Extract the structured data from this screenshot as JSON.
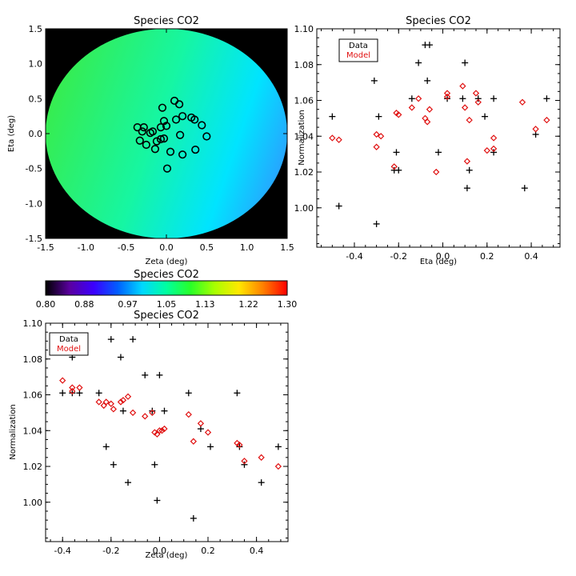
{
  "chart_data": [
    {
      "type": "map",
      "title": "Species CO2",
      "xlabel": "Zeta (deg)",
      "ylabel": "Eta (deg)",
      "xlim": [
        -1.5,
        1.5
      ],
      "ylim": [
        -1.5,
        1.5
      ],
      "xticks": [
        "-1.5",
        "-1.0",
        "-0.5",
        "0.0",
        "0.5",
        "1.0",
        "1.5"
      ],
      "yticks": [
        "-1.5",
        "-1.0",
        "-0.5",
        "0.0",
        "0.5",
        "1.0",
        "1.5"
      ],
      "disk_radius": 1.5,
      "gradient_low_color": "#38ec4c",
      "gradient_mid_color": "#16f6a2",
      "gradient_high_color": "#00e4ff",
      "gradient_edge_color": "#2aa0ff",
      "circles": [
        [
          -0.28,
          0.09
        ],
        [
          -0.36,
          0.09
        ],
        [
          -0.2,
          0.01
        ],
        [
          -0.05,
          0.37
        ],
        [
          0.1,
          0.47
        ],
        [
          0.16,
          0.42
        ],
        [
          -0.3,
          0.03
        ],
        [
          -0.17,
          0.03
        ],
        [
          -0.03,
          0.18
        ],
        [
          0.0,
          0.11
        ],
        [
          0.12,
          0.2
        ],
        [
          0.2,
          0.25
        ],
        [
          0.31,
          0.23
        ],
        [
          0.35,
          0.2
        ],
        [
          0.44,
          0.12
        ],
        [
          0.5,
          -0.04
        ],
        [
          0.05,
          -0.26
        ],
        [
          0.17,
          -0.02
        ],
        [
          0.36,
          -0.23
        ],
        [
          -0.33,
          -0.1
        ],
        [
          -0.25,
          -0.16
        ],
        [
          -0.14,
          -0.22
        ],
        [
          -0.07,
          -0.08
        ],
        [
          -0.03,
          -0.07
        ],
        [
          0.01,
          -0.5
        ],
        [
          -0.12,
          -0.11
        ],
        [
          0.2,
          -0.3
        ],
        [
          -0.07,
          0.09
        ]
      ]
    },
    {
      "type": "colorbar",
      "title": "Species CO2",
      "range": [
        0.8,
        1.3
      ],
      "ticks": [
        "0.80",
        "0.88",
        "0.97",
        "1.05",
        "1.13",
        "1.22",
        "1.30"
      ],
      "colors": [
        "#000000",
        "#5a00a0",
        "#3b00ff",
        "#0060ff",
        "#00d8ff",
        "#00ffa0",
        "#28ff28",
        "#a8ff00",
        "#ffe800",
        "#ff8000",
        "#ff0000"
      ]
    },
    {
      "type": "scatter",
      "title": "Species CO2",
      "xlabel": "Eta (deg)",
      "ylabel": "Normalization",
      "xlim": [
        -0.57,
        0.53
      ],
      "ylim": [
        0.978,
        1.1
      ],
      "xticks": [
        "-0.4",
        "-0.2",
        "0.0",
        "0.2",
        "0.4"
      ],
      "xtick_values": [
        -0.4,
        -0.2,
        0.0,
        0.2,
        0.4
      ],
      "yticks": [
        "1.00",
        "1.02",
        "1.04",
        "1.06",
        "1.08",
        "1.10"
      ],
      "ytick_values": [
        1.0,
        1.02,
        1.04,
        1.06,
        1.08,
        1.1
      ],
      "legend": {
        "data": "Data",
        "model": "Model"
      },
      "data_color": "#000000",
      "model_color": "#e01010",
      "series": [
        {
          "name": "Data",
          "marker": "plus",
          "points": [
            [
              -0.5,
              1.051
            ],
            [
              -0.47,
              1.001
            ],
            [
              -0.31,
              1.071
            ],
            [
              -0.3,
              0.991
            ],
            [
              -0.29,
              1.051
            ],
            [
              -0.22,
              1.021
            ],
            [
              -0.21,
              1.031
            ],
            [
              -0.2,
              1.021
            ],
            [
              -0.14,
              1.061
            ],
            [
              -0.11,
              1.081
            ],
            [
              -0.08,
              1.091
            ],
            [
              -0.06,
              1.091
            ],
            [
              -0.07,
              1.071
            ],
            [
              -0.02,
              1.031
            ],
            [
              0.02,
              1.061
            ],
            [
              0.09,
              1.061
            ],
            [
              0.1,
              1.081
            ],
            [
              0.11,
              1.011
            ],
            [
              0.12,
              1.021
            ],
            [
              0.16,
              1.061
            ],
            [
              0.19,
              1.051
            ],
            [
              0.23,
              1.061
            ],
            [
              0.23,
              1.031
            ],
            [
              0.37,
              1.011
            ],
            [
              0.42,
              1.041
            ],
            [
              0.47,
              1.061
            ]
          ]
        },
        {
          "name": "Model",
          "marker": "diamond",
          "points": [
            [
              -0.5,
              1.039
            ],
            [
              -0.47,
              1.038
            ],
            [
              -0.3,
              1.041
            ],
            [
              -0.28,
              1.04
            ],
            [
              -0.3,
              1.034
            ],
            [
              -0.22,
              1.023
            ],
            [
              -0.2,
              1.052
            ],
            [
              -0.21,
              1.053
            ],
            [
              -0.14,
              1.056
            ],
            [
              -0.11,
              1.061
            ],
            [
              -0.08,
              1.05
            ],
            [
              -0.07,
              1.048
            ],
            [
              -0.06,
              1.055
            ],
            [
              -0.03,
              1.02
            ],
            [
              0.02,
              1.062
            ],
            [
              0.02,
              1.064
            ],
            [
              0.09,
              1.068
            ],
            [
              0.1,
              1.056
            ],
            [
              0.11,
              1.026
            ],
            [
              0.12,
              1.049
            ],
            [
              0.15,
              1.064
            ],
            [
              0.16,
              1.059
            ],
            [
              0.2,
              1.032
            ],
            [
              0.23,
              1.039
            ],
            [
              0.23,
              1.033
            ],
            [
              0.36,
              1.059
            ],
            [
              0.42,
              1.044
            ],
            [
              0.47,
              1.049
            ]
          ]
        }
      ]
    },
    {
      "type": "scatter",
      "title": "Species CO2",
      "xlabel": "Zeta (deg)",
      "ylabel": "Normalization",
      "xlim": [
        -0.47,
        0.53
      ],
      "ylim": [
        0.978,
        1.1
      ],
      "xticks": [
        "-0.4",
        "-0.2",
        "0.0",
        "0.2",
        "0.4"
      ],
      "xtick_values": [
        -0.4,
        -0.2,
        0.0,
        0.2,
        0.4
      ],
      "yticks": [
        "1.00",
        "1.02",
        "1.04",
        "1.06",
        "1.08",
        "1.10"
      ],
      "ytick_values": [
        1.0,
        1.02,
        1.04,
        1.06,
        1.08,
        1.1
      ],
      "legend": {
        "data": "Data",
        "model": "Model"
      },
      "data_color": "#000000",
      "model_color": "#e01010",
      "series": [
        {
          "name": "Data",
          "marker": "plus",
          "points": [
            [
              -0.4,
              1.061
            ],
            [
              -0.36,
              1.081
            ],
            [
              -0.36,
              1.061
            ],
            [
              -0.33,
              1.061
            ],
            [
              -0.25,
              1.061
            ],
            [
              -0.22,
              1.031
            ],
            [
              -0.2,
              1.091
            ],
            [
              -0.19,
              1.021
            ],
            [
              -0.16,
              1.081
            ],
            [
              -0.15,
              1.051
            ],
            [
              -0.13,
              1.011
            ],
            [
              -0.11,
              1.091
            ],
            [
              -0.06,
              1.071
            ],
            [
              -0.03,
              1.051
            ],
            [
              -0.02,
              1.021
            ],
            [
              -0.01,
              1.001
            ],
            [
              0.0,
              1.071
            ],
            [
              0.02,
              1.051
            ],
            [
              0.12,
              1.061
            ],
            [
              0.14,
              0.991
            ],
            [
              0.17,
              1.041
            ],
            [
              0.21,
              1.031
            ],
            [
              0.32,
              1.061
            ],
            [
              0.33,
              1.031
            ],
            [
              0.35,
              1.021
            ],
            [
              0.42,
              1.011
            ],
            [
              0.49,
              1.031
            ]
          ]
        },
        {
          "name": "Model",
          "marker": "diamond",
          "points": [
            [
              -0.4,
              1.068
            ],
            [
              -0.36,
              1.064
            ],
            [
              -0.36,
              1.062
            ],
            [
              -0.33,
              1.064
            ],
            [
              -0.25,
              1.056
            ],
            [
              -0.23,
              1.054
            ],
            [
              -0.22,
              1.056
            ],
            [
              -0.2,
              1.055
            ],
            [
              -0.19,
              1.052
            ],
            [
              -0.16,
              1.056
            ],
            [
              -0.15,
              1.057
            ],
            [
              -0.13,
              1.059
            ],
            [
              -0.11,
              1.05
            ],
            [
              -0.06,
              1.048
            ],
            [
              -0.03,
              1.05
            ],
            [
              -0.02,
              1.039
            ],
            [
              -0.01,
              1.038
            ],
            [
              0.0,
              1.04
            ],
            [
              0.01,
              1.04
            ],
            [
              0.02,
              1.041
            ],
            [
              0.12,
              1.049
            ],
            [
              0.14,
              1.034
            ],
            [
              0.17,
              1.044
            ],
            [
              0.2,
              1.039
            ],
            [
              0.32,
              1.033
            ],
            [
              0.33,
              1.032
            ],
            [
              0.35,
              1.023
            ],
            [
              0.42,
              1.025
            ],
            [
              0.49,
              1.02
            ]
          ]
        }
      ]
    }
  ]
}
